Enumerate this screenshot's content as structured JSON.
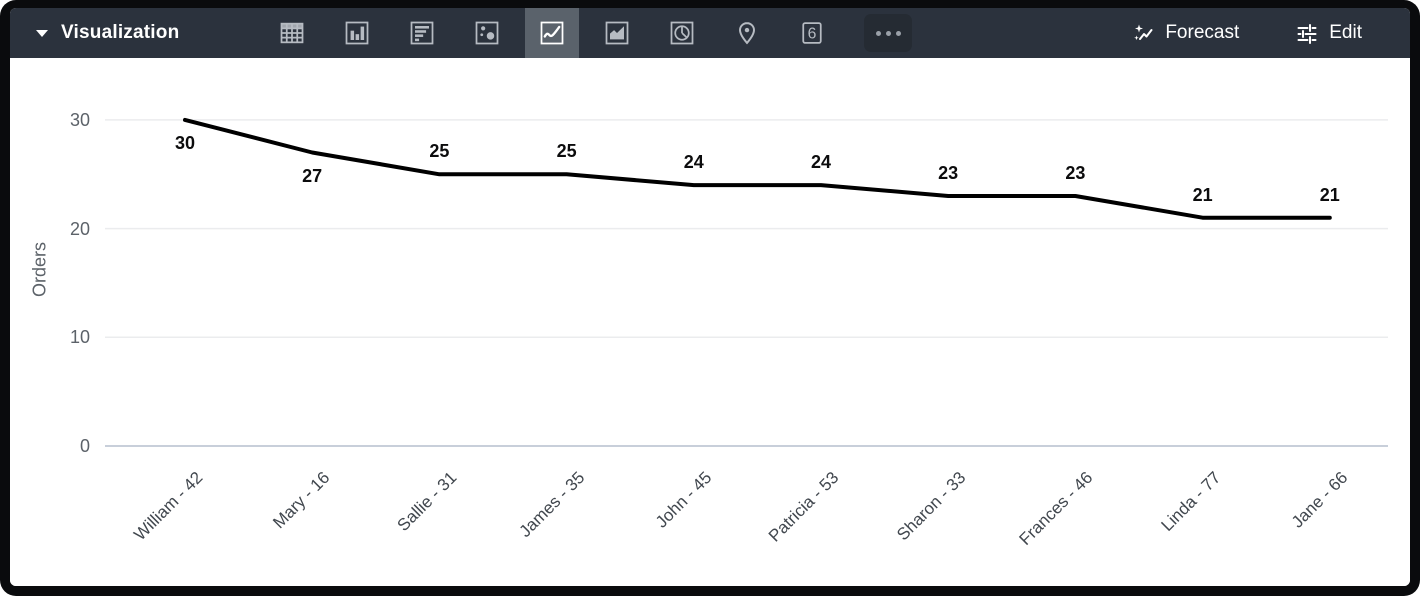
{
  "toolbar": {
    "title": "Visualization",
    "chart_types": [
      {
        "type": "table",
        "icon": "table-chart-icon",
        "selected": false
      },
      {
        "type": "column",
        "icon": "column-chart-icon",
        "selected": false
      },
      {
        "type": "bar",
        "icon": "bar-chart-icon",
        "selected": false
      },
      {
        "type": "scatter",
        "icon": "scatter-chart-icon",
        "selected": false
      },
      {
        "type": "line",
        "icon": "line-chart-icon",
        "selected": true
      },
      {
        "type": "area",
        "icon": "area-chart-icon",
        "selected": false
      },
      {
        "type": "pie",
        "icon": "pie-chart-icon",
        "selected": false
      },
      {
        "type": "map",
        "icon": "map-pin-icon",
        "selected": false
      },
      {
        "type": "single-value",
        "icon": "single-value-icon",
        "selected": false,
        "badge": "6"
      }
    ],
    "more_icon": "ellipsis-icon",
    "forecast_label": "Forecast",
    "forecast_icon": "sparkle-trend-icon",
    "edit_label": "Edit",
    "edit_icon": "tune-sliders-icon"
  },
  "chart_data": {
    "type": "line",
    "categories": [
      "William - 42",
      "Mary - 16",
      "Sallie - 31",
      "James - 35",
      "John - 45",
      "Patricia - 53",
      "Sharon - 33",
      "Frances - 46",
      "Linda - 77",
      "Jane - 66"
    ],
    "values": [
      30,
      27,
      25,
      25,
      24,
      24,
      23,
      23,
      21,
      21
    ],
    "series_name": "Orders",
    "title": "",
    "xlabel": "",
    "ylabel": "Orders",
    "yticks": [
      0,
      10,
      20,
      30
    ],
    "ylim": [
      0,
      33
    ],
    "grid": true,
    "data_labels": true,
    "legend": "none",
    "line_color": "#000000"
  },
  "colors": {
    "toolbar_bg": "#2b323d",
    "selected_type_bg": "#5a626b",
    "icon_gray": "#b6bbc2",
    "grid": "#ebecee",
    "zero_line": "#c8cfda",
    "tick_text": "#5c6269",
    "xlabel_text": "#41474e",
    "data_label_text": "#0c0c0d"
  }
}
